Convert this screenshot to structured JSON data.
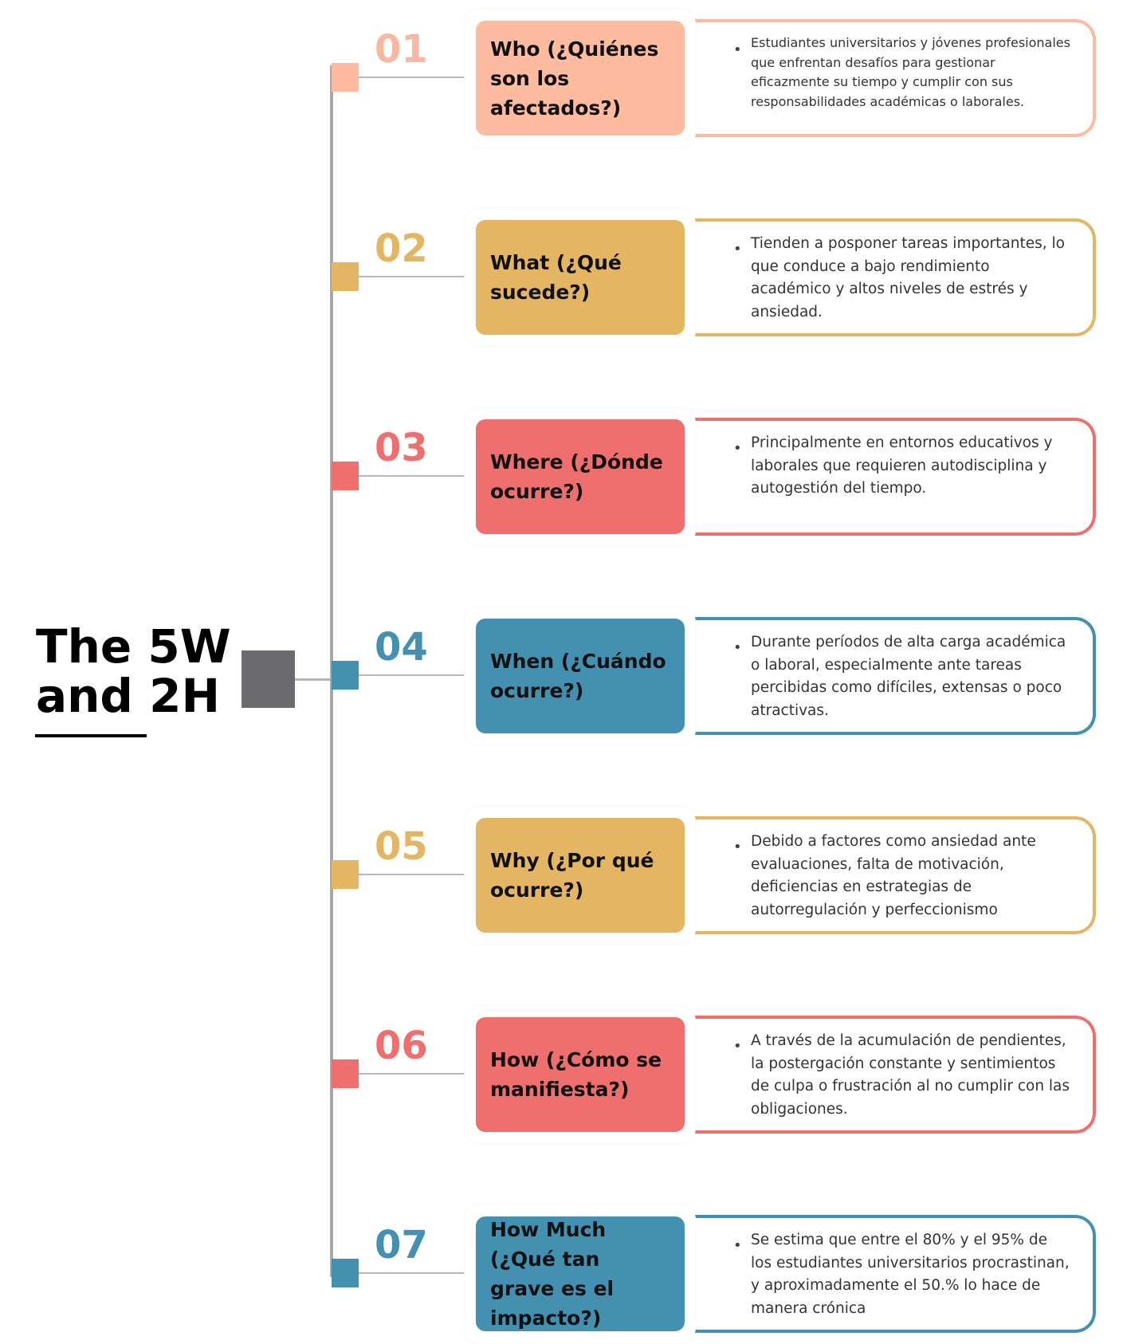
{
  "title": {
    "line1": "The 5W",
    "line2": "and 2H"
  },
  "colors": {
    "salmon": "#fdbb9f",
    "gold": "#e4b562",
    "coral": "#ef6e6e",
    "teal": "#4390b1",
    "hub_gray": "#6b6b6e"
  },
  "items": [
    {
      "number": "01",
      "question": "Who (¿Quiénes son los afectados?)",
      "answer": "Estudiantes universitarios y jóvenes profesionales que enfrentan desafíos para gestionar eficazmente su tiempo y cumplir con sus responsabilidades académicas o laborales.",
      "color": "#fdbb9f",
      "numColor": "#f8b7a0"
    },
    {
      "number": "02",
      "question": "What (¿Qué sucede?)",
      "answer": "Tienden a posponer tareas importantes, lo que conduce a bajo rendimiento académico y altos niveles de estrés y ansiedad.",
      "color": "#e4b562",
      "numColor": "#e4b562"
    },
    {
      "number": "03",
      "question": "Where (¿Dónde ocurre?)",
      "answer": "Principalmente en entornos educativos y laborales que requieren autodisciplina y autogestión del tiempo.",
      "color": "#ef6e6e",
      "numColor": "#ef6e6e"
    },
    {
      "number": "04",
      "question": "When (¿Cuándo ocurre?)",
      "answer": "Durante períodos de alta carga académica o laboral, especialmente ante tareas percibidas como difíciles, extensas o poco atractivas.",
      "color": "#4390b1",
      "numColor": "#4390b1"
    },
    {
      "number": "05",
      "question": "Why (¿Por qué ocurre?)",
      "answer": "Debido a factores como ansiedad ante evaluaciones, falta de motivación, deficiencias en estrategias de autorregulación y perfeccionismo",
      "color": "#e4b562",
      "numColor": "#e4b562"
    },
    {
      "number": "06",
      "question": "How (¿Cómo se manifiesta?)",
      "answer": " A través de la acumulación de pendientes, la postergación constante y sentimientos de culpa o frustración al no cumplir con las obligaciones.",
      "color": "#ef6e6e",
      "numColor": "#ef6e6e"
    },
    {
      "number": "07",
      "question": "How Much (¿Qué tan grave es el impacto?)",
      "answer": "Se estima que entre el 80% y el 95% de los estudiantes universitarios procrastinan, y aproximadamente el 50.% lo hace de manera crónica",
      "color": "#4390b1",
      "numColor": "#4390b1"
    }
  ]
}
